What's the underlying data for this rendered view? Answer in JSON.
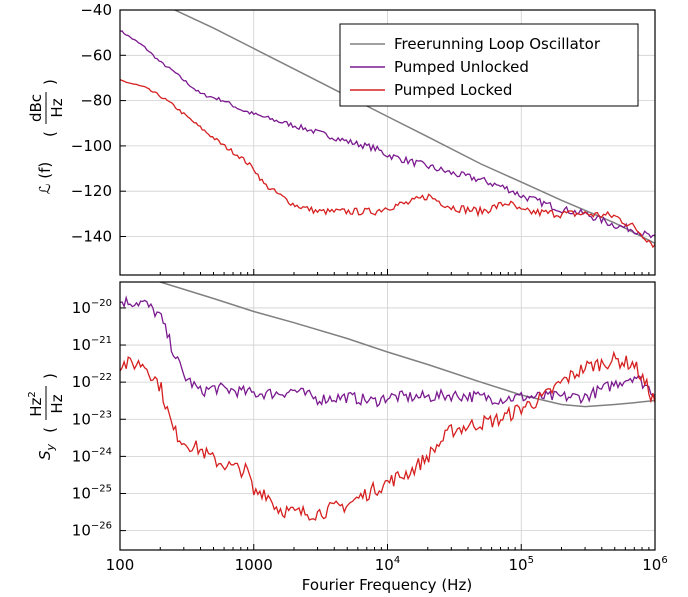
{
  "colors": {
    "freerunning": "#808080",
    "unlocked": "#7b1a8f",
    "locked": "#d62020",
    "grid": "#cfcfcf"
  },
  "chart_data": [
    {
      "type": "line",
      "panel": "top",
      "xscale": "log",
      "xlim": [
        100,
        1000000
      ],
      "ylim": [
        -157,
        -40
      ],
      "y_ticks": [
        -140,
        -120,
        -100,
        -80,
        -60,
        -40
      ],
      "ylabel": {
        "symbol": "ℒ (f)",
        "numerator": "dBc",
        "denominator": "Hz"
      },
      "grid": true,
      "legend": {
        "placement": "top-right",
        "entries": [
          "Freerunning Loop Oscillator",
          "Pumped Unlocked",
          "Pumped Locked"
        ]
      },
      "series": [
        {
          "name": "Freerunning Loop Oscillator",
          "x": [
            100,
            200,
            500,
            1000,
            2000,
            5000,
            10000,
            20000,
            50000,
            100000,
            200000,
            500000,
            1000000
          ],
          "y": [
            -28,
            -37,
            -48,
            -57,
            -66,
            -78,
            -87,
            -96,
            -108,
            -116,
            -124,
            -134,
            -143
          ]
        },
        {
          "name": "Pumped Unlocked",
          "x": [
            100,
            150,
            200,
            250,
            300,
            400,
            600,
            800,
            1000,
            1500,
            2000,
            3000,
            5000,
            8000,
            10000,
            15000,
            20000,
            30000,
            50000,
            80000,
            100000,
            200000,
            300000,
            500000,
            700000,
            1000000
          ],
          "y": [
            -49,
            -56,
            -63,
            -67,
            -71,
            -77,
            -80,
            -84,
            -86,
            -89,
            -91,
            -94,
            -98,
            -101,
            -104,
            -107,
            -109,
            -112,
            -115,
            -119,
            -122,
            -128,
            -130,
            -135,
            -137,
            -141
          ]
        },
        {
          "name": "Pumped Locked",
          "x": [
            100,
            150,
            200,
            250,
            300,
            400,
            600,
            800,
            1000,
            1200,
            1500,
            2000,
            3000,
            5000,
            8000,
            10000,
            15000,
            20000,
            30000,
            50000,
            80000,
            100000,
            200000,
            300000,
            500000,
            700000,
            1000000
          ],
          "y": [
            -71,
            -74,
            -78,
            -82,
            -86,
            -92,
            -100,
            -105,
            -110,
            -117,
            -121,
            -126,
            -129,
            -129,
            -129,
            -127,
            -125,
            -122,
            -127,
            -129,
            -125,
            -129,
            -130,
            -130,
            -131,
            -136,
            -144
          ]
        }
      ]
    },
    {
      "type": "line",
      "panel": "bottom",
      "xscale": "log",
      "yscale": "log",
      "xlim": [
        100,
        1000000
      ],
      "ylim": [
        3e-27,
        5e-20
      ],
      "x_ticks": [
        {
          "value": 100,
          "base": "100",
          "exp": ""
        },
        {
          "value": 1000,
          "base": "1000",
          "exp": ""
        },
        {
          "value": 10000,
          "base": "10",
          "exp": "4"
        },
        {
          "value": 100000,
          "base": "10",
          "exp": "5"
        },
        {
          "value": 1000000,
          "base": "10",
          "exp": "6"
        }
      ],
      "y_ticks": [
        {
          "value": 1e-26,
          "base": "10",
          "exp": "−26"
        },
        {
          "value": 1e-25,
          "base": "10",
          "exp": "−25"
        },
        {
          "value": 1e-24,
          "base": "10",
          "exp": "−24"
        },
        {
          "value": 1e-23,
          "base": "10",
          "exp": "−23"
        },
        {
          "value": 1e-22,
          "base": "10",
          "exp": "−22"
        },
        {
          "value": 1e-21,
          "base": "10",
          "exp": "−21"
        },
        {
          "value": 1e-20,
          "base": "10",
          "exp": "−20"
        }
      ],
      "xlabel": "Fourier Frequency (Hz)",
      "ylabel": {
        "symbol": "S",
        "subscript": "y",
        "numerator": "Hz",
        "numerator_exp": "2",
        "denominator": "Hz"
      },
      "grid": true,
      "series": [
        {
          "name": "Freerunning Loop Oscillator",
          "x": [
            100,
            200,
            500,
            1000,
            2000,
            5000,
            10000,
            20000,
            50000,
            100000,
            200000,
            300000,
            500000,
            700000,
            1000000
          ],
          "y": [
            1e-19,
            5e-20,
            1.8e-20,
            8e-21,
            4e-21,
            1.5e-21,
            6.5e-22,
            3e-22,
            1e-22,
            4.5e-23,
            2.5e-23,
            2.2e-23,
            2.5e-23,
            2.8e-23,
            3.2e-23
          ]
        },
        {
          "name": "Pumped Unlocked",
          "x": [
            100,
            150,
            200,
            250,
            300,
            400,
            500,
            700,
            1000,
            1500,
            2000,
            3000,
            5000,
            8000,
            10000,
            20000,
            30000,
            50000,
            70000,
            100000,
            200000,
            300000,
            500000,
            700000,
            1000000
          ],
          "y": [
            1.5e-20,
            1.4e-20,
            6e-21,
            7e-22,
            1.5e-22,
            5.5e-23,
            7e-23,
            6e-23,
            5e-23,
            5e-23,
            6e-23,
            3.5e-23,
            4e-23,
            3e-23,
            4e-23,
            4e-23,
            4.5e-23,
            4e-23,
            3.5e-23,
            4e-23,
            4e-23,
            4e-23,
            9e-23,
            1.5e-22,
            5e-23
          ]
        },
        {
          "name": "Pumped Locked",
          "x": [
            100,
            150,
            200,
            250,
            300,
            400,
            500,
            700,
            900,
            1000,
            1200,
            1500,
            2000,
            3000,
            4000,
            5000,
            7000,
            10000,
            15000,
            20000,
            30000,
            50000,
            70000,
            100000,
            150000,
            200000,
            300000,
            500000,
            700000,
            1000000
          ],
          "y": [
            3e-22,
            3.2e-22,
            8e-23,
            5e-24,
            2.5e-24,
            1.5e-24,
            8e-25,
            5e-25,
            4e-25,
            1e-25,
            1.2e-25,
            4e-26,
            3e-26,
            3e-26,
            4e-26,
            5e-26,
            1e-25,
            2e-25,
            4e-25,
            1e-24,
            5e-24,
            8e-24,
            1e-23,
            2e-23,
            4e-23,
            1e-22,
            2.5e-22,
            4e-22,
            3e-22,
            3e-23
          ]
        }
      ]
    }
  ]
}
